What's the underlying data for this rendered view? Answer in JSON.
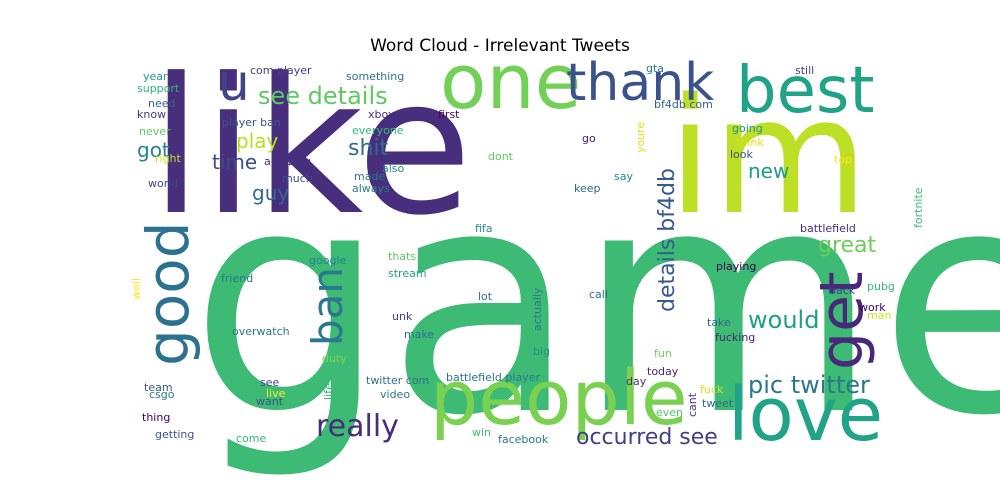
{
  "chart_data": {
    "type": "wordcloud",
    "title": "Word Cloud - Irrelevant Tweets",
    "colormap": "viridis",
    "background": "#ffffff",
    "words": [
      {
        "text": "game",
        "weight": 1.0,
        "color": "#3dbb74"
      },
      {
        "text": "like",
        "weight": 0.97,
        "color": "#472f7d"
      },
      {
        "text": "im",
        "weight": 0.78,
        "color": "#bddf26"
      },
      {
        "text": "one",
        "weight": 0.42,
        "color": "#73d056"
      },
      {
        "text": "people",
        "weight": 0.44,
        "color": "#7ad151"
      },
      {
        "text": "love",
        "weight": 0.44,
        "color": "#20a386"
      },
      {
        "text": "best",
        "weight": 0.37,
        "color": "#20a386"
      },
      {
        "text": "thank",
        "weight": 0.32,
        "color": "#3b528b"
      },
      {
        "text": "get",
        "weight": 0.34,
        "color": "#482878"
      },
      {
        "text": "good",
        "weight": 0.31,
        "color": "#2c728e"
      },
      {
        "text": "u",
        "weight": 0.3,
        "color": "#414487"
      },
      {
        "text": "ban",
        "weight": 0.27,
        "color": "#2a788e"
      },
      {
        "text": "really",
        "weight": 0.18,
        "color": "#472d7b"
      },
      {
        "text": "see details",
        "weight": 0.14,
        "color": "#5ec962"
      },
      {
        "text": "pic twitter",
        "weight": 0.12,
        "color": "#2a788e"
      },
      {
        "text": "occurred see",
        "weight": 0.12,
        "color": "#433e85"
      },
      {
        "text": "details bf4db",
        "weight": 0.11,
        "color": "#38598c"
      },
      {
        "text": "would",
        "weight": 0.13,
        "color": "#1fa187"
      },
      {
        "text": "great",
        "weight": 0.12,
        "color": "#6ccd5a"
      },
      {
        "text": "shit",
        "weight": 0.12,
        "color": "#2e6e8e"
      },
      {
        "text": "new",
        "weight": 0.11,
        "color": "#1e9b8a"
      },
      {
        "text": "play",
        "weight": 0.11,
        "color": "#bade28"
      },
      {
        "text": "got",
        "weight": 0.1,
        "color": "#25848e"
      },
      {
        "text": "time",
        "weight": 0.1,
        "color": "#3e4a89"
      },
      {
        "text": "guy",
        "weight": 0.1,
        "color": "#31688e"
      },
      {
        "text": "com player",
        "weight": 0.05,
        "color": "#433e85"
      },
      {
        "text": "something",
        "weight": 0.05,
        "color": "#2d708e"
      },
      {
        "text": "player ban",
        "weight": 0.05,
        "color": "#3b528b"
      },
      {
        "text": "amazing",
        "weight": 0.05,
        "color": "#46327e"
      },
      {
        "text": "everyone",
        "weight": 0.05,
        "color": "#35b779"
      },
      {
        "text": "made",
        "weight": 0.05,
        "color": "#2c728e"
      },
      {
        "text": "always",
        "weight": 0.05,
        "color": "#297b8e"
      },
      {
        "text": "much",
        "weight": 0.05,
        "color": "#3e4c8a"
      },
      {
        "text": "also",
        "weight": 0.05,
        "color": "#238a8d"
      },
      {
        "text": "xbox",
        "weight": 0.05,
        "color": "#472f7d"
      },
      {
        "text": "first",
        "weight": 0.05,
        "color": "#440154"
      },
      {
        "text": "go",
        "weight": 0.05,
        "color": "#48186a"
      },
      {
        "text": "gta",
        "weight": 0.05,
        "color": "#2a788e"
      },
      {
        "text": "bf4db com",
        "weight": 0.05,
        "color": "#33638d"
      },
      {
        "text": "still",
        "weight": 0.05,
        "color": "#433e85"
      },
      {
        "text": "going",
        "weight": 0.05,
        "color": "#1f968b"
      },
      {
        "text": "think",
        "weight": 0.05,
        "color": "#dde318"
      },
      {
        "text": "look",
        "weight": 0.05,
        "color": "#3b528b"
      },
      {
        "text": "top",
        "weight": 0.05,
        "color": "#fde725"
      },
      {
        "text": "youre",
        "weight": 0.05,
        "color": "#d8e219"
      },
      {
        "text": "say",
        "weight": 0.05,
        "color": "#25848e"
      },
      {
        "text": "keep",
        "weight": 0.05,
        "color": "#31688e"
      },
      {
        "text": "dont",
        "weight": 0.05,
        "color": "#5ec962"
      },
      {
        "text": "year",
        "weight": 0.05,
        "color": "#1e9b8a"
      },
      {
        "text": "support",
        "weight": 0.05,
        "color": "#2db27d"
      },
      {
        "text": "need",
        "weight": 0.05,
        "color": "#34618d"
      },
      {
        "text": "know",
        "weight": 0.05,
        "color": "#443983"
      },
      {
        "text": "never",
        "weight": 0.05,
        "color": "#5ec962"
      },
      {
        "text": "right",
        "weight": 0.05,
        "color": "#c2df23"
      },
      {
        "text": "world",
        "weight": 0.05,
        "color": "#414487"
      },
      {
        "text": "fifa",
        "weight": 0.05,
        "color": "#21918c"
      },
      {
        "text": "battlefield",
        "weight": 0.05,
        "color": "#472d7b"
      },
      {
        "text": "fortnite",
        "weight": 0.05,
        "color": "#3dbb74"
      },
      {
        "text": "friend",
        "weight": 0.05,
        "color": "#2a788e"
      },
      {
        "text": "google",
        "weight": 0.05,
        "color": "#287d8e"
      },
      {
        "text": "thats",
        "weight": 0.05,
        "color": "#5ec962"
      },
      {
        "text": "stream",
        "weight": 0.05,
        "color": "#1fa187"
      },
      {
        "text": "well",
        "weight": 0.05,
        "color": "#fde725"
      },
      {
        "text": "playing",
        "weight": 0.05,
        "color": "#440154"
      },
      {
        "text": "back",
        "weight": 0.05,
        "color": "#414487"
      },
      {
        "text": "pubg",
        "weight": 0.05,
        "color": "#35b779"
      },
      {
        "text": "work",
        "weight": 0.05,
        "color": "#440154"
      },
      {
        "text": "man",
        "weight": 0.05,
        "color": "#c8e020"
      },
      {
        "text": "lot",
        "weight": 0.05,
        "color": "#2c728e"
      },
      {
        "text": "call",
        "weight": 0.05,
        "color": "#2e6e8e"
      },
      {
        "text": "actually",
        "weight": 0.05,
        "color": "#2a788e"
      },
      {
        "text": "unk",
        "weight": 0.05,
        "color": "#433e85"
      },
      {
        "text": "make",
        "weight": 0.05,
        "color": "#2c728e"
      },
      {
        "text": "overwatch",
        "weight": 0.05,
        "color": "#2a788e"
      },
      {
        "text": "take",
        "weight": 0.05,
        "color": "#31688e"
      },
      {
        "text": "fucking",
        "weight": 0.05,
        "color": "#482878"
      },
      {
        "text": "big",
        "weight": 0.05,
        "color": "#21918c"
      },
      {
        "text": "duty",
        "weight": 0.05,
        "color": "#7ad151"
      },
      {
        "text": "fun",
        "weight": 0.05,
        "color": "#6ccd5a"
      },
      {
        "text": "team",
        "weight": 0.05,
        "color": "#39568c"
      },
      {
        "text": "today",
        "weight": 0.05,
        "color": "#482576"
      },
      {
        "text": "csgo",
        "weight": 0.05,
        "color": "#2a788e"
      },
      {
        "text": "see",
        "weight": 0.05,
        "color": "#3e4c8a"
      },
      {
        "text": "live",
        "weight": 0.05,
        "color": "#fde725"
      },
      {
        "text": "life",
        "weight": 0.05,
        "color": "#35b779"
      },
      {
        "text": "twitter com",
        "weight": 0.05,
        "color": "#2d708e"
      },
      {
        "text": "battlefield player",
        "weight": 0.05,
        "color": "#2a788e"
      },
      {
        "text": "day",
        "weight": 0.05,
        "color": "#46327e"
      },
      {
        "text": "cant",
        "weight": 0.05,
        "color": "#453781"
      },
      {
        "text": "fuck",
        "weight": 0.05,
        "color": "#d8e219"
      },
      {
        "text": "tweet",
        "weight": 0.05,
        "color": "#31688e"
      },
      {
        "text": "want",
        "weight": 0.05,
        "color": "#3b528b"
      },
      {
        "text": "video",
        "weight": 0.05,
        "color": "#2a788e"
      },
      {
        "text": "thing",
        "weight": 0.05,
        "color": "#440154"
      },
      {
        "text": "even",
        "weight": 0.05,
        "color": "#52c569"
      },
      {
        "text": "win",
        "weight": 0.05,
        "color": "#3dbb74"
      },
      {
        "text": "getting",
        "weight": 0.05,
        "color": "#3b528b"
      },
      {
        "text": "come",
        "weight": 0.05,
        "color": "#35b779"
      },
      {
        "text": "facebook",
        "weight": 0.05,
        "color": "#2a788e"
      }
    ]
  }
}
